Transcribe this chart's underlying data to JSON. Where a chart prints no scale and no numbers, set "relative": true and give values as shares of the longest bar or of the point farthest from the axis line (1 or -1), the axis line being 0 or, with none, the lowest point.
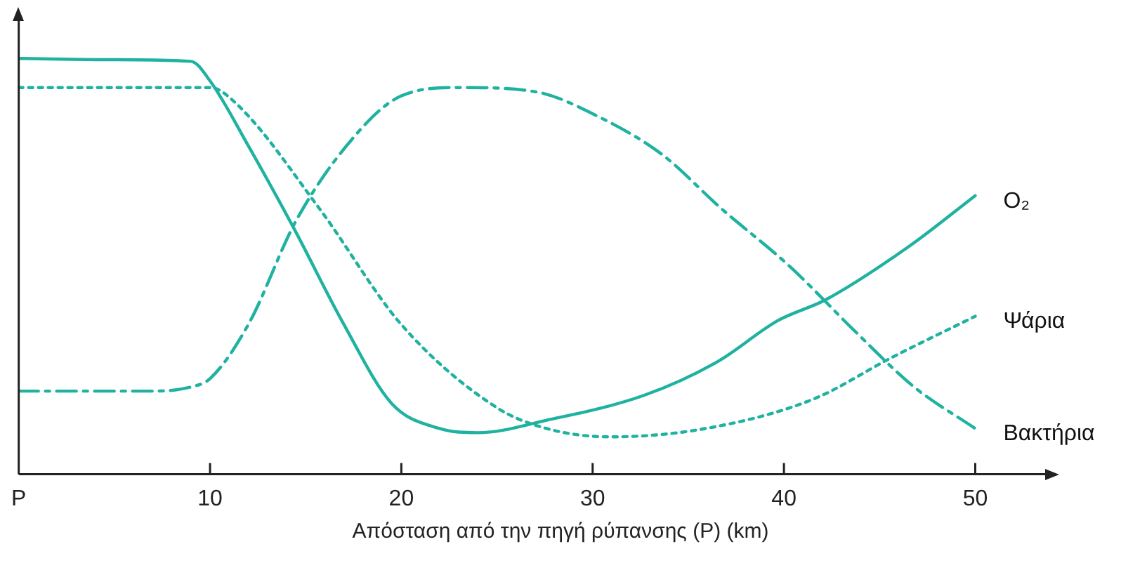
{
  "chart_data": {
    "type": "line",
    "xlabel": "Απόσταση από την πηγή ρύπανσης (P) (km)",
    "relative": true,
    "xlim": [
      0,
      53.8
    ],
    "xticks": [
      {
        "value": 0,
        "label": "P"
      },
      10,
      20,
      30,
      40,
      50
    ],
    "legend": false,
    "grid": false,
    "marker": "none",
    "series": [
      {
        "name": "O₂",
        "color": "#20b2a0",
        "line_style": "solid",
        "x": [
          0,
          5,
          9,
          10,
          12,
          14.4,
          17,
          19.5,
          22,
          24,
          27.6,
          32.7,
          36.5,
          39.7,
          42.2,
          46.6,
          50
        ],
        "values": [
          1.0,
          0.997,
          0.993,
          0.946,
          0.79,
          0.59,
          0.36,
          0.17,
          0.11,
          0.1,
          0.13,
          0.19,
          0.27,
          0.37,
          0.42,
          0.55,
          0.67
        ]
      },
      {
        "name": "Ψάρια",
        "color": "#20b2a0",
        "line_style": "dotted",
        "x": [
          0,
          5,
          10,
          11.4,
          15.7,
          20,
          25,
          27.6,
          30.9,
          35.9,
          41.5,
          45.6,
          50
        ],
        "values": [
          0.93,
          0.93,
          0.93,
          0.89,
          0.64,
          0.36,
          0.16,
          0.11,
          0.09,
          0.11,
          0.18,
          0.28,
          0.38
        ]
      },
      {
        "name": "Βακτήρια",
        "color": "#20b2a0",
        "line_style": "dashed",
        "x": [
          0,
          4,
          7,
          9,
          10,
          12,
          14.5,
          17.5,
          20,
          23,
          27,
          30.3,
          33.6,
          36.7,
          40.3,
          43.8,
          46.8,
          50
        ],
        "values": [
          0.2,
          0.2,
          0.2,
          0.21,
          0.23,
          0.36,
          0.61,
          0.81,
          0.91,
          0.93,
          0.92,
          0.86,
          0.77,
          0.64,
          0.5,
          0.34,
          0.21,
          0.11
        ]
      }
    ]
  }
}
